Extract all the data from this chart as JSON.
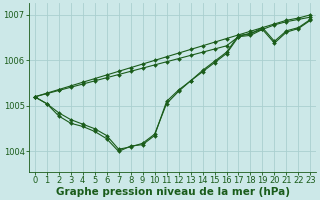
{
  "background_color": "#cce8e8",
  "grid_color": "#aacfcf",
  "line_color": "#1a5c1a",
  "xlabel": "Graphe pression niveau de la mer (hPa)",
  "xlabel_fontsize": 7.5,
  "tick_fontsize": 6,
  "ytick_labels": [
    "1004",
    "1005",
    "1006",
    "1007"
  ],
  "ytick_values": [
    1004,
    1005,
    1006,
    1007
  ],
  "ylim": [
    1003.55,
    1007.25
  ],
  "xlim": [
    -0.5,
    23.5
  ],
  "xtick_values": [
    0,
    1,
    2,
    3,
    4,
    5,
    6,
    7,
    8,
    9,
    10,
    11,
    12,
    13,
    14,
    15,
    16,
    17,
    18,
    19,
    20,
    21,
    22,
    23
  ],
  "y_straight": [
    1005.2,
    1005.28,
    1005.36,
    1005.44,
    1005.52,
    1005.6,
    1005.68,
    1005.76,
    1005.84,
    1005.92,
    1006.0,
    1006.08,
    1006.16,
    1006.24,
    1006.32,
    1006.4,
    1006.48,
    1006.56,
    1006.64,
    1006.72,
    1006.8,
    1006.88,
    1006.93,
    1007.0
  ],
  "y_dip1": [
    1005.2,
    1005.05,
    1004.85,
    1004.7,
    1004.6,
    1004.5,
    1004.35,
    1004.05,
    1004.1,
    1004.18,
    1004.38,
    1005.05,
    1005.32,
    1005.55,
    1005.75,
    1005.95,
    1006.15,
    1006.52,
    1006.55,
    1006.68,
    1006.38,
    1006.62,
    1006.7,
    1006.88
  ],
  "y_dip2": [
    1005.2,
    1005.05,
    1004.78,
    1004.62,
    1004.55,
    1004.44,
    1004.28,
    1004.0,
    1004.12,
    1004.15,
    1004.35,
    1005.1,
    1005.35,
    1005.55,
    1005.78,
    1005.98,
    1006.18,
    1006.55,
    1006.58,
    1006.72,
    1006.42,
    1006.65,
    1006.72,
    1006.9
  ],
  "y_straight2": [
    1005.2,
    1005.27,
    1005.34,
    1005.41,
    1005.48,
    1005.55,
    1005.62,
    1005.69,
    1005.76,
    1005.83,
    1005.9,
    1005.97,
    1006.04,
    1006.11,
    1006.18,
    1006.25,
    1006.32,
    1006.52,
    1006.6,
    1006.68,
    1006.78,
    1006.85,
    1006.9,
    1006.95
  ]
}
